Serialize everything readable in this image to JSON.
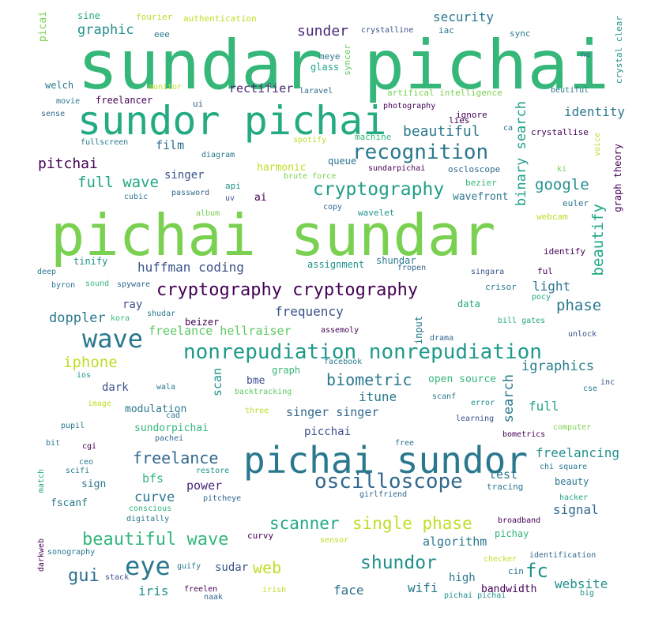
{
  "word_cloud": {
    "words": [
      {
        "text": "sundar pichai",
        "color": "#35b779"
      },
      {
        "text": "pichai sundar",
        "color": "#7ad151"
      },
      {
        "text": "sundor pichai",
        "color": "#25ab82"
      },
      {
        "text": "pichai sundor",
        "color": "#2a788e"
      },
      {
        "text": "nonrepudiation nonrepudiation",
        "color": "#1f9a8a"
      },
      {
        "text": "cryptography cryptography",
        "color": "#440154"
      },
      {
        "text": "recognition",
        "color": "#2a788e"
      },
      {
        "text": "cryptography",
        "color": "#1f9e89"
      },
      {
        "text": "oscilloscope",
        "color": "#31688e"
      },
      {
        "text": "wave",
        "color": "#2a788e"
      },
      {
        "text": "eye",
        "color": "#2a788e"
      },
      {
        "text": "beautiful wave",
        "color": "#35b779"
      },
      {
        "text": "single phase",
        "color": "#bddf26"
      },
      {
        "text": "scanner",
        "color": "#22a884"
      },
      {
        "text": "shundor",
        "color": "#21918c"
      },
      {
        "text": "huffman coding",
        "color": "#3b528b"
      },
      {
        "text": "full wave",
        "color": "#22a884"
      },
      {
        "text": "biometric",
        "color": "#2a788e"
      },
      {
        "text": "freelance",
        "color": "#31688e"
      },
      {
        "text": "igraphics",
        "color": "#277f8e"
      },
      {
        "text": "binary search",
        "color": "#1f9e89"
      },
      {
        "text": "beautify",
        "color": "#22a884"
      },
      {
        "text": "google",
        "color": "#21918c"
      },
      {
        "text": "sunder",
        "color": "#482878"
      },
      {
        "text": "pitchai",
        "color": "#440154"
      },
      {
        "text": "beautiful",
        "color": "#2a788e"
      },
      {
        "text": "graphic",
        "color": "#21918c"
      },
      {
        "text": "security",
        "color": "#2a788e"
      },
      {
        "text": "iphone",
        "color": "#bddf26"
      },
      {
        "text": "phase",
        "color": "#2a788e"
      },
      {
        "text": "doppler",
        "color": "#2a788e"
      },
      {
        "text": "frequency",
        "color": "#3b528b"
      },
      {
        "text": "freelance hellraiser",
        "color": "#5ec962"
      },
      {
        "text": "fc",
        "color": "#21918c"
      },
      {
        "text": "gui",
        "color": "#2c728e"
      },
      {
        "text": "web",
        "color": "#bddf26"
      },
      {
        "text": "website",
        "color": "#21918c"
      },
      {
        "text": "freelancing",
        "color": "#21918c"
      },
      {
        "text": "curve",
        "color": "#2a788e"
      },
      {
        "text": "search",
        "color": "#2a788e"
      },
      {
        "text": "singer singer",
        "color": "#31688e"
      },
      {
        "text": "identity",
        "color": "#2a788e"
      },
      {
        "text": "light",
        "color": "#2a788e"
      },
      {
        "text": "itune",
        "color": "#2a788e"
      },
      {
        "text": "full",
        "color": "#22a884"
      },
      {
        "text": "algorithm",
        "color": "#2a788e"
      },
      {
        "text": "test",
        "color": "#2a788e"
      },
      {
        "text": "signal",
        "color": "#31688e"
      },
      {
        "text": "wifi",
        "color": "#2a788e"
      },
      {
        "text": "iris",
        "color": "#21918c"
      },
      {
        "text": "face",
        "color": "#2c728e"
      },
      {
        "text": "rectifier",
        "color": "#482878"
      },
      {
        "text": "film",
        "color": "#2c728e"
      },
      {
        "text": "singer",
        "color": "#3b528b"
      },
      {
        "text": "wavefront",
        "color": "#2a788e"
      },
      {
        "text": "scan",
        "color": "#21918c"
      },
      {
        "text": "bfs",
        "color": "#35b779"
      },
      {
        "text": "power",
        "color": "#482878"
      },
      {
        "text": "ray",
        "color": "#3b528b"
      },
      {
        "text": "dark",
        "color": "#3b528b"
      },
      {
        "text": "high",
        "color": "#2a788e"
      },
      {
        "text": "sudar",
        "color": "#3b528b"
      },
      {
        "text": "picchai",
        "color": "#3b528b"
      },
      {
        "text": "bandwidth",
        "color": "#440154"
      },
      {
        "text": "modulation",
        "color": "#2a788e"
      },
      {
        "text": "sundorpichai",
        "color": "#35b779"
      },
      {
        "text": "fscanf",
        "color": "#2a788e"
      },
      {
        "text": "sign",
        "color": "#2a788e"
      },
      {
        "text": "harmonic",
        "color": "#bddf26"
      },
      {
        "text": "queue",
        "color": "#2c728e"
      },
      {
        "text": "beizer",
        "color": "#440154"
      },
      {
        "text": "bme",
        "color": "#3b528b"
      },
      {
        "text": "graph",
        "color": "#35b779"
      },
      {
        "text": "open source",
        "color": "#35b779"
      },
      {
        "text": "input",
        "color": "#2a788e"
      },
      {
        "text": "sine",
        "color": "#22a884"
      },
      {
        "text": "fourier",
        "color": "#b5de2b"
      },
      {
        "text": "authentication",
        "color": "#bddf26"
      },
      {
        "text": "crystalline",
        "color": "#3b528b"
      },
      {
        "text": "iac",
        "color": "#2a788e"
      },
      {
        "text": "sync",
        "color": "#2a788e"
      },
      {
        "text": "crystal clear",
        "color": "#21918c"
      },
      {
        "text": "picai",
        "color": "#7ad151"
      },
      {
        "text": "eee",
        "color": "#2a788e"
      },
      {
        "text": "meye",
        "color": "#2a788e"
      },
      {
        "text": "glass",
        "color": "#22a884"
      },
      {
        "text": "syncer",
        "color": "#5ec962"
      },
      {
        "text": "na",
        "color": "#31688e"
      },
      {
        "text": "welch",
        "color": "#2a788e"
      },
      {
        "text": "monitor",
        "color": "#bddf26"
      },
      {
        "text": "laravel",
        "color": "#31688e"
      },
      {
        "text": "artifical intelligence",
        "color": "#7ad151"
      },
      {
        "text": "beutiful",
        "color": "#2a788e"
      },
      {
        "text": "movie",
        "color": "#2a788e"
      },
      {
        "text": "freelancer",
        "color": "#440154"
      },
      {
        "text": "ui",
        "color": "#31688e"
      },
      {
        "text": "photography",
        "color": "#440154"
      },
      {
        "text": "ignore",
        "color": "#440154"
      },
      {
        "text": "sense",
        "color": "#31688e"
      },
      {
        "text": "lies",
        "color": "#440154"
      },
      {
        "text": "ca",
        "color": "#2a788e"
      },
      {
        "text": "crystallise",
        "color": "#440154"
      },
      {
        "text": "voice",
        "color": "#b5de2b"
      },
      {
        "text": "graph theory",
        "color": "#440154"
      },
      {
        "text": "fullscreen",
        "color": "#2a788e"
      },
      {
        "text": "spotify",
        "color": "#b5de2b"
      },
      {
        "text": "machine",
        "color": "#35b779"
      },
      {
        "text": "diagram",
        "color": "#2a788e"
      },
      {
        "text": "brute force",
        "color": "#7ad151"
      },
      {
        "text": "sundarpichai",
        "color": "#440154"
      },
      {
        "text": "oscloscope",
        "color": "#31688e"
      },
      {
        "text": "bezier",
        "color": "#35b779"
      },
      {
        "text": "ki",
        "color": "#7ad151"
      },
      {
        "text": "cubic",
        "color": "#2a788e"
      },
      {
        "text": "password",
        "color": "#31688e"
      },
      {
        "text": "api",
        "color": "#21918c"
      },
      {
        "text": "uv",
        "color": "#3b528b"
      },
      {
        "text": "ai",
        "color": "#440154"
      },
      {
        "text": "euler",
        "color": "#2a788e"
      },
      {
        "text": "album",
        "color": "#7ad151"
      },
      {
        "text": "copy",
        "color": "#31688e"
      },
      {
        "text": "wavelet",
        "color": "#21918c"
      },
      {
        "text": "webcam",
        "color": "#b5de2b"
      },
      {
        "text": "tinify",
        "color": "#21918c"
      },
      {
        "text": "assignment",
        "color": "#21918c"
      },
      {
        "text": "shundar",
        "color": "#2a788e"
      },
      {
        "text": "identify",
        "color": "#440154"
      },
      {
        "text": "deep",
        "color": "#2a788e"
      },
      {
        "text": "fropen",
        "color": "#31688e"
      },
      {
        "text": "singara",
        "color": "#3b528b"
      },
      {
        "text": "ful",
        "color": "#440154"
      },
      {
        "text": "byron",
        "color": "#2a788e"
      },
      {
        "text": "sound",
        "color": "#35b779"
      },
      {
        "text": "spyware",
        "color": "#31688e"
      },
      {
        "text": "crisor",
        "color": "#2a788e"
      },
      {
        "text": "pocy",
        "color": "#22a884"
      },
      {
        "text": "data",
        "color": "#22a884"
      },
      {
        "text": "kora",
        "color": "#35b779"
      },
      {
        "text": "shudar",
        "color": "#2a788e"
      },
      {
        "text": "assemoly",
        "color": "#440154"
      },
      {
        "text": "bill gates",
        "color": "#22a884"
      },
      {
        "text": "unlock",
        "color": "#3b528b"
      },
      {
        "text": "drama",
        "color": "#31688e"
      },
      {
        "text": "facebook",
        "color": "#2a788e"
      },
      {
        "text": "ios",
        "color": "#21918c"
      },
      {
        "text": "wala",
        "color": "#2a788e"
      },
      {
        "text": "backtracking",
        "color": "#5ec962"
      },
      {
        "text": "inc",
        "color": "#3b528b"
      },
      {
        "text": "cse",
        "color": "#2a788e"
      },
      {
        "text": "scanf",
        "color": "#2a788e"
      },
      {
        "text": "image",
        "color": "#bddf26"
      },
      {
        "text": "cad",
        "color": "#2a788e"
      },
      {
        "text": "three",
        "color": "#b5de2b"
      },
      {
        "text": "error",
        "color": "#21918c"
      },
      {
        "text": "learning",
        "color": "#3b528b"
      },
      {
        "text": "pupil",
        "color": "#2a788e"
      },
      {
        "text": "pachei",
        "color": "#31688e"
      },
      {
        "text": "bometrics",
        "color": "#440154"
      },
      {
        "text": "computer",
        "color": "#7ad151"
      },
      {
        "text": "bit",
        "color": "#2a788e"
      },
      {
        "text": "cgi",
        "color": "#440154"
      },
      {
        "text": "free",
        "color": "#2a788e"
      },
      {
        "text": "ceo",
        "color": "#2a788e"
      },
      {
        "text": "scifi",
        "color": "#2a788e"
      },
      {
        "text": "restore",
        "color": "#21918c"
      },
      {
        "text": "chi square",
        "color": "#2a788e"
      },
      {
        "text": "match",
        "color": "#22a884"
      },
      {
        "text": "tracing",
        "color": "#2a788e"
      },
      {
        "text": "girlfriend",
        "color": "#31688e"
      },
      {
        "text": "beauty",
        "color": "#2a788e"
      },
      {
        "text": "pitcheye",
        "color": "#31688e"
      },
      {
        "text": "hacker",
        "color": "#22a884"
      },
      {
        "text": "conscious",
        "color": "#35b779"
      },
      {
        "text": "digitally",
        "color": "#2a788e"
      },
      {
        "text": "broadband",
        "color": "#440154"
      },
      {
        "text": "darkweb",
        "color": "#440154"
      },
      {
        "text": "sonography",
        "color": "#2a788e"
      },
      {
        "text": "sensor",
        "color": "#bddf26"
      },
      {
        "text": "curvy",
        "color": "#440154"
      },
      {
        "text": "pichay",
        "color": "#35b779"
      },
      {
        "text": "checker",
        "color": "#bddf26"
      },
      {
        "text": "identification",
        "color": "#31688e"
      },
      {
        "text": "guify",
        "color": "#2a788e"
      },
      {
        "text": "cin",
        "color": "#2a788e"
      },
      {
        "text": "stack",
        "color": "#3b528b"
      },
      {
        "text": "freelen",
        "color": "#440154"
      },
      {
        "text": "naak",
        "color": "#31688e"
      },
      {
        "text": "irish",
        "color": "#bddf26"
      },
      {
        "text": "pichai pichai",
        "color": "#21918c"
      },
      {
        "text": "big",
        "color": "#21918c"
      }
    ]
  }
}
